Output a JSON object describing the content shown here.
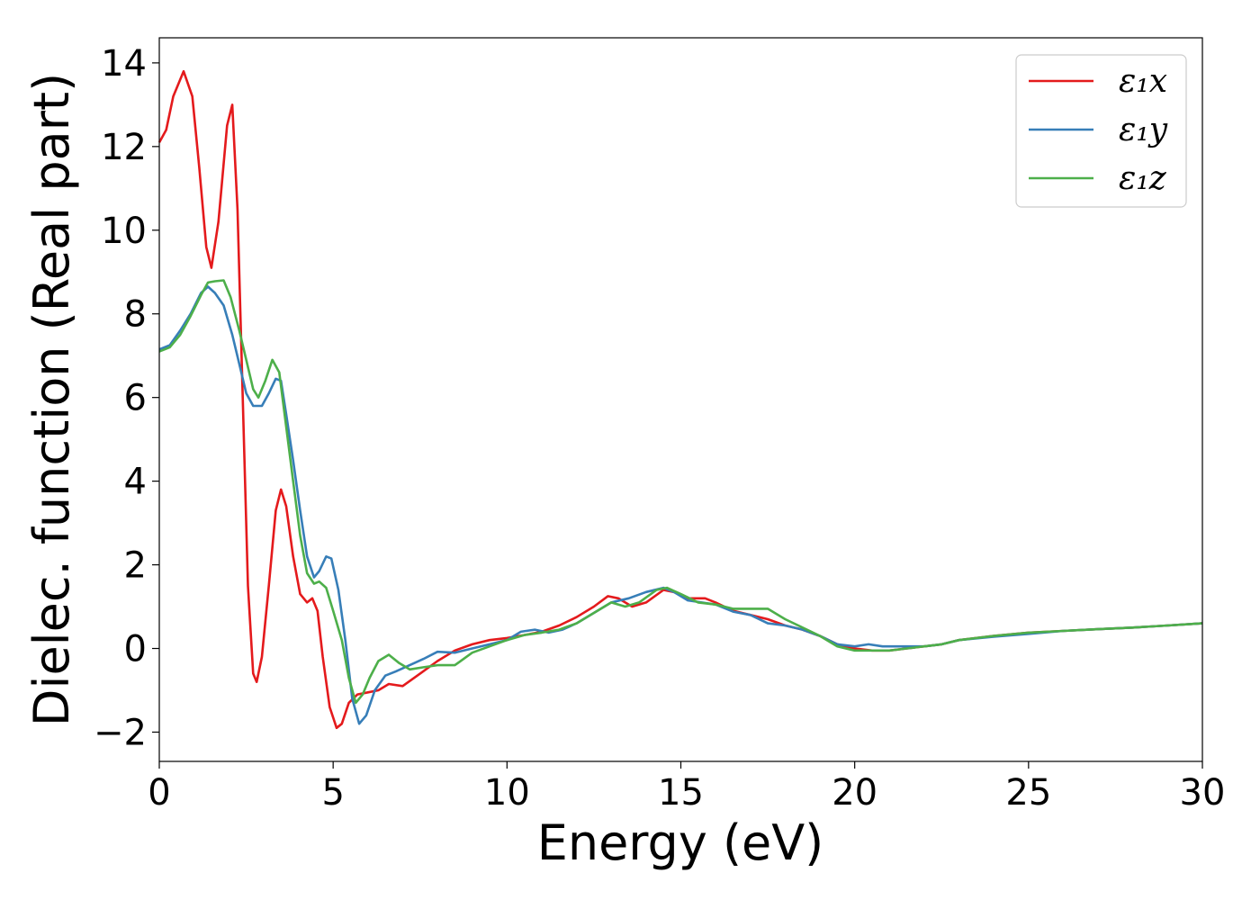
{
  "chart_data": {
    "type": "line",
    "xlabel": "Energy (eV)",
    "ylabel": "Dielec. function (Real part)",
    "xlim": [
      0,
      30
    ],
    "ylim": [
      -2.7,
      14.6
    ],
    "x_ticks": [
      0,
      5,
      10,
      15,
      20,
      25,
      30
    ],
    "x_tick_labels": [
      "0",
      "5",
      "10",
      "15",
      "20",
      "25",
      "30"
    ],
    "y_ticks": [
      -2,
      0,
      2,
      4,
      6,
      8,
      10,
      12,
      14
    ],
    "y_tick_labels": [
      "−2",
      "0",
      "2",
      "4",
      "6",
      "8",
      "10",
      "12",
      "14"
    ],
    "grid": false,
    "legend_position": "top-right",
    "series": [
      {
        "name": "ε₁x",
        "color": "#e41a1c",
        "points": [
          [
            0,
            12.1
          ],
          [
            0.2,
            12.4
          ],
          [
            0.4,
            13.2
          ],
          [
            0.7,
            13.8
          ],
          [
            0.95,
            13.2
          ],
          [
            1.15,
            11.5
          ],
          [
            1.35,
            9.6
          ],
          [
            1.5,
            9.1
          ],
          [
            1.7,
            10.2
          ],
          [
            1.95,
            12.5
          ],
          [
            2.1,
            13.0
          ],
          [
            2.25,
            10.5
          ],
          [
            2.4,
            6.0
          ],
          [
            2.55,
            1.5
          ],
          [
            2.7,
            -0.6
          ],
          [
            2.8,
            -0.8
          ],
          [
            2.95,
            -0.2
          ],
          [
            3.15,
            1.5
          ],
          [
            3.35,
            3.3
          ],
          [
            3.5,
            3.8
          ],
          [
            3.65,
            3.4
          ],
          [
            3.85,
            2.2
          ],
          [
            4.05,
            1.3
          ],
          [
            4.25,
            1.1
          ],
          [
            4.4,
            1.2
          ],
          [
            4.55,
            0.9
          ],
          [
            4.7,
            -0.2
          ],
          [
            4.9,
            -1.4
          ],
          [
            5.1,
            -1.9
          ],
          [
            5.25,
            -1.8
          ],
          [
            5.45,
            -1.3
          ],
          [
            5.7,
            -1.1
          ],
          [
            6.0,
            -1.05
          ],
          [
            6.3,
            -1.0
          ],
          [
            6.6,
            -0.85
          ],
          [
            7.0,
            -0.9
          ],
          [
            7.5,
            -0.6
          ],
          [
            8.0,
            -0.3
          ],
          [
            8.5,
            -0.05
          ],
          [
            9.0,
            0.1
          ],
          [
            9.5,
            0.2
          ],
          [
            10.0,
            0.25
          ],
          [
            10.5,
            0.32
          ],
          [
            11.0,
            0.4
          ],
          [
            11.5,
            0.55
          ],
          [
            12.0,
            0.75
          ],
          [
            12.5,
            1.0
          ],
          [
            12.9,
            1.25
          ],
          [
            13.2,
            1.2
          ],
          [
            13.6,
            1.0
          ],
          [
            14.0,
            1.1
          ],
          [
            14.5,
            1.4
          ],
          [
            14.8,
            1.35
          ],
          [
            15.2,
            1.2
          ],
          [
            15.7,
            1.2
          ],
          [
            16.0,
            1.1
          ],
          [
            16.5,
            0.9
          ],
          [
            17.0,
            0.8
          ],
          [
            17.5,
            0.7
          ],
          [
            18.0,
            0.55
          ],
          [
            18.5,
            0.45
          ],
          [
            19.0,
            0.3
          ],
          [
            19.5,
            0.1
          ],
          [
            20.0,
            0.0
          ],
          [
            20.5,
            -0.05
          ],
          [
            21.0,
            -0.05
          ],
          [
            21.5,
            0.0
          ],
          [
            22.0,
            0.05
          ],
          [
            22.5,
            0.1
          ],
          [
            23.0,
            0.2
          ],
          [
            24.0,
            0.3
          ],
          [
            25.0,
            0.38
          ],
          [
            26.0,
            0.42
          ],
          [
            27.0,
            0.46
          ],
          [
            28.0,
            0.5
          ],
          [
            29.0,
            0.55
          ],
          [
            30.0,
            0.6
          ]
        ]
      },
      {
        "name": "ε₁y",
        "color": "#377eb8",
        "points": [
          [
            0,
            7.15
          ],
          [
            0.3,
            7.25
          ],
          [
            0.6,
            7.6
          ],
          [
            0.9,
            8.0
          ],
          [
            1.2,
            8.5
          ],
          [
            1.4,
            8.65
          ],
          [
            1.6,
            8.5
          ],
          [
            1.85,
            8.2
          ],
          [
            2.1,
            7.5
          ],
          [
            2.3,
            6.8
          ],
          [
            2.5,
            6.1
          ],
          [
            2.7,
            5.8
          ],
          [
            2.95,
            5.8
          ],
          [
            3.15,
            6.1
          ],
          [
            3.35,
            6.45
          ],
          [
            3.5,
            6.4
          ],
          [
            3.65,
            5.6
          ],
          [
            3.85,
            4.5
          ],
          [
            4.05,
            3.3
          ],
          [
            4.25,
            2.2
          ],
          [
            4.45,
            1.7
          ],
          [
            4.6,
            1.85
          ],
          [
            4.8,
            2.2
          ],
          [
            4.95,
            2.15
          ],
          [
            5.15,
            1.4
          ],
          [
            5.35,
            0.2
          ],
          [
            5.55,
            -1.2
          ],
          [
            5.75,
            -1.8
          ],
          [
            5.95,
            -1.6
          ],
          [
            6.2,
            -1.0
          ],
          [
            6.5,
            -0.65
          ],
          [
            6.8,
            -0.55
          ],
          [
            7.2,
            -0.4
          ],
          [
            7.6,
            -0.25
          ],
          [
            8.0,
            -0.08
          ],
          [
            8.5,
            -0.1
          ],
          [
            9.0,
            0.0
          ],
          [
            9.5,
            0.1
          ],
          [
            10.0,
            0.2
          ],
          [
            10.4,
            0.4
          ],
          [
            10.8,
            0.45
          ],
          [
            11.2,
            0.38
          ],
          [
            11.6,
            0.45
          ],
          [
            12.0,
            0.6
          ],
          [
            12.5,
            0.85
          ],
          [
            13.0,
            1.1
          ],
          [
            13.5,
            1.2
          ],
          [
            14.0,
            1.35
          ],
          [
            14.5,
            1.45
          ],
          [
            14.8,
            1.35
          ],
          [
            15.2,
            1.15
          ],
          [
            15.6,
            1.1
          ],
          [
            16.0,
            1.05
          ],
          [
            16.5,
            0.88
          ],
          [
            17.0,
            0.8
          ],
          [
            17.5,
            0.6
          ],
          [
            18.0,
            0.55
          ],
          [
            18.5,
            0.45
          ],
          [
            19.0,
            0.3
          ],
          [
            19.5,
            0.1
          ],
          [
            20.0,
            0.05
          ],
          [
            20.4,
            0.1
          ],
          [
            20.8,
            0.05
          ],
          [
            21.5,
            0.05
          ],
          [
            22.0,
            0.05
          ],
          [
            22.5,
            0.1
          ],
          [
            23.0,
            0.2
          ],
          [
            24.0,
            0.28
          ],
          [
            25.0,
            0.35
          ],
          [
            26.0,
            0.42
          ],
          [
            27.0,
            0.46
          ],
          [
            28.0,
            0.5
          ],
          [
            29.0,
            0.55
          ],
          [
            30.0,
            0.6
          ]
        ]
      },
      {
        "name": "ε₁z",
        "color": "#4daf4a",
        "points": [
          [
            0,
            7.1
          ],
          [
            0.3,
            7.2
          ],
          [
            0.6,
            7.5
          ],
          [
            0.9,
            7.95
          ],
          [
            1.2,
            8.45
          ],
          [
            1.4,
            8.75
          ],
          [
            1.6,
            8.78
          ],
          [
            1.85,
            8.8
          ],
          [
            2.05,
            8.4
          ],
          [
            2.3,
            7.6
          ],
          [
            2.5,
            6.9
          ],
          [
            2.7,
            6.2
          ],
          [
            2.85,
            6.0
          ],
          [
            3.05,
            6.4
          ],
          [
            3.25,
            6.9
          ],
          [
            3.45,
            6.6
          ],
          [
            3.65,
            5.3
          ],
          [
            3.85,
            4.0
          ],
          [
            4.05,
            2.7
          ],
          [
            4.25,
            1.8
          ],
          [
            4.45,
            1.55
          ],
          [
            4.6,
            1.6
          ],
          [
            4.8,
            1.45
          ],
          [
            5.0,
            0.9
          ],
          [
            5.25,
            0.2
          ],
          [
            5.45,
            -0.7
          ],
          [
            5.65,
            -1.3
          ],
          [
            5.85,
            -1.1
          ],
          [
            6.05,
            -0.7
          ],
          [
            6.3,
            -0.3
          ],
          [
            6.6,
            -0.15
          ],
          [
            6.9,
            -0.35
          ],
          [
            7.2,
            -0.5
          ],
          [
            7.6,
            -0.45
          ],
          [
            8.0,
            -0.4
          ],
          [
            8.5,
            -0.4
          ],
          [
            9.0,
            -0.1
          ],
          [
            9.5,
            0.05
          ],
          [
            10.0,
            0.2
          ],
          [
            10.5,
            0.32
          ],
          [
            11.0,
            0.38
          ],
          [
            11.5,
            0.45
          ],
          [
            12.0,
            0.6
          ],
          [
            12.5,
            0.85
          ],
          [
            13.0,
            1.1
          ],
          [
            13.4,
            1.0
          ],
          [
            13.8,
            1.1
          ],
          [
            14.3,
            1.4
          ],
          [
            14.6,
            1.45
          ],
          [
            15.0,
            1.3
          ],
          [
            15.5,
            1.1
          ],
          [
            16.0,
            1.05
          ],
          [
            16.5,
            0.95
          ],
          [
            17.0,
            0.95
          ],
          [
            17.5,
            0.95
          ],
          [
            18.0,
            0.7
          ],
          [
            18.5,
            0.5
          ],
          [
            19.0,
            0.3
          ],
          [
            19.5,
            0.05
          ],
          [
            20.0,
            -0.05
          ],
          [
            20.5,
            -0.05
          ],
          [
            21.0,
            -0.05
          ],
          [
            21.5,
            0.0
          ],
          [
            22.0,
            0.05
          ],
          [
            22.5,
            0.1
          ],
          [
            23.0,
            0.2
          ],
          [
            24.0,
            0.3
          ],
          [
            25.0,
            0.38
          ],
          [
            26.0,
            0.42
          ],
          [
            27.0,
            0.46
          ],
          [
            28.0,
            0.5
          ],
          [
            29.0,
            0.55
          ],
          [
            30.0,
            0.6
          ]
        ]
      }
    ]
  }
}
